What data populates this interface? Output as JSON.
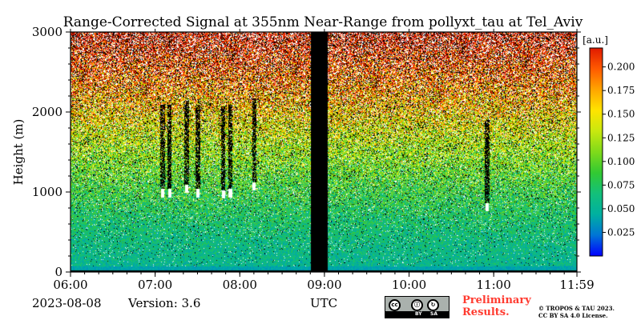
{
  "chart_data": {
    "type": "heatmap",
    "title": "Range-Corrected Signal at 355nm Near-Range from pollyxt_tau at Tel_Aviv",
    "ylabel": "Height (m)",
    "xlabel": "UTC",
    "x_ticks": [
      "06:00",
      "07:00",
      "08:00",
      "09:00",
      "10:00",
      "11:00",
      "11:59"
    ],
    "x_range_hours": [
      6.0,
      11.983
    ],
    "y_ticks": [
      0,
      1000,
      2000,
      3000
    ],
    "ylim": [
      0,
      3000
    ],
    "colorbar": {
      "unit": "[a.u.]",
      "ticks": [
        "0.025",
        "0.050",
        "0.075",
        "0.100",
        "0.125",
        "0.150",
        "0.175",
        "0.200"
      ],
      "range": [
        0.0,
        0.22
      ],
      "colors": [
        "#0000ff",
        "#0075d6",
        "#00b0a0",
        "#13c07a",
        "#32c932",
        "#7fda1a",
        "#c8e80f",
        "#ffe400",
        "#ffa500",
        "#ff5a00",
        "#e01a00"
      ]
    },
    "no_data_intervals_utc": [
      [
        "08:50",
        "09:02"
      ]
    ],
    "cloud_events": [
      {
        "time_utc": "07:05",
        "base_m": 1000,
        "intensity": 0.22
      },
      {
        "time_utc": "07:10",
        "base_m": 1000,
        "intensity": 0.22
      },
      {
        "time_utc": "07:22",
        "base_m": 1050,
        "intensity": 0.22
      },
      {
        "time_utc": "07:30",
        "base_m": 1000,
        "intensity": 0.22
      },
      {
        "time_utc": "07:48",
        "base_m": 980,
        "intensity": 0.22
      },
      {
        "time_utc": "07:53",
        "base_m": 1000,
        "intensity": 0.22
      },
      {
        "time_utc": "08:10",
        "base_m": 1080,
        "intensity": 0.22
      },
      {
        "time_utc": "10:55",
        "base_m": 820,
        "intensity": 0.18
      }
    ],
    "surface_layer_m": [
      0,
      70
    ]
  },
  "footer": {
    "date": "2023-08-08",
    "version": "Version: 3.6",
    "preliminary_line1": "Preliminary",
    "preliminary_line2": "Results.",
    "license_line1": "© TROPOS & TAU 2023.",
    "license_line2": "CC BY SA 4.0 License."
  },
  "cc_badge": {
    "cc": "cc",
    "by": "BY",
    "sa": "SA"
  }
}
